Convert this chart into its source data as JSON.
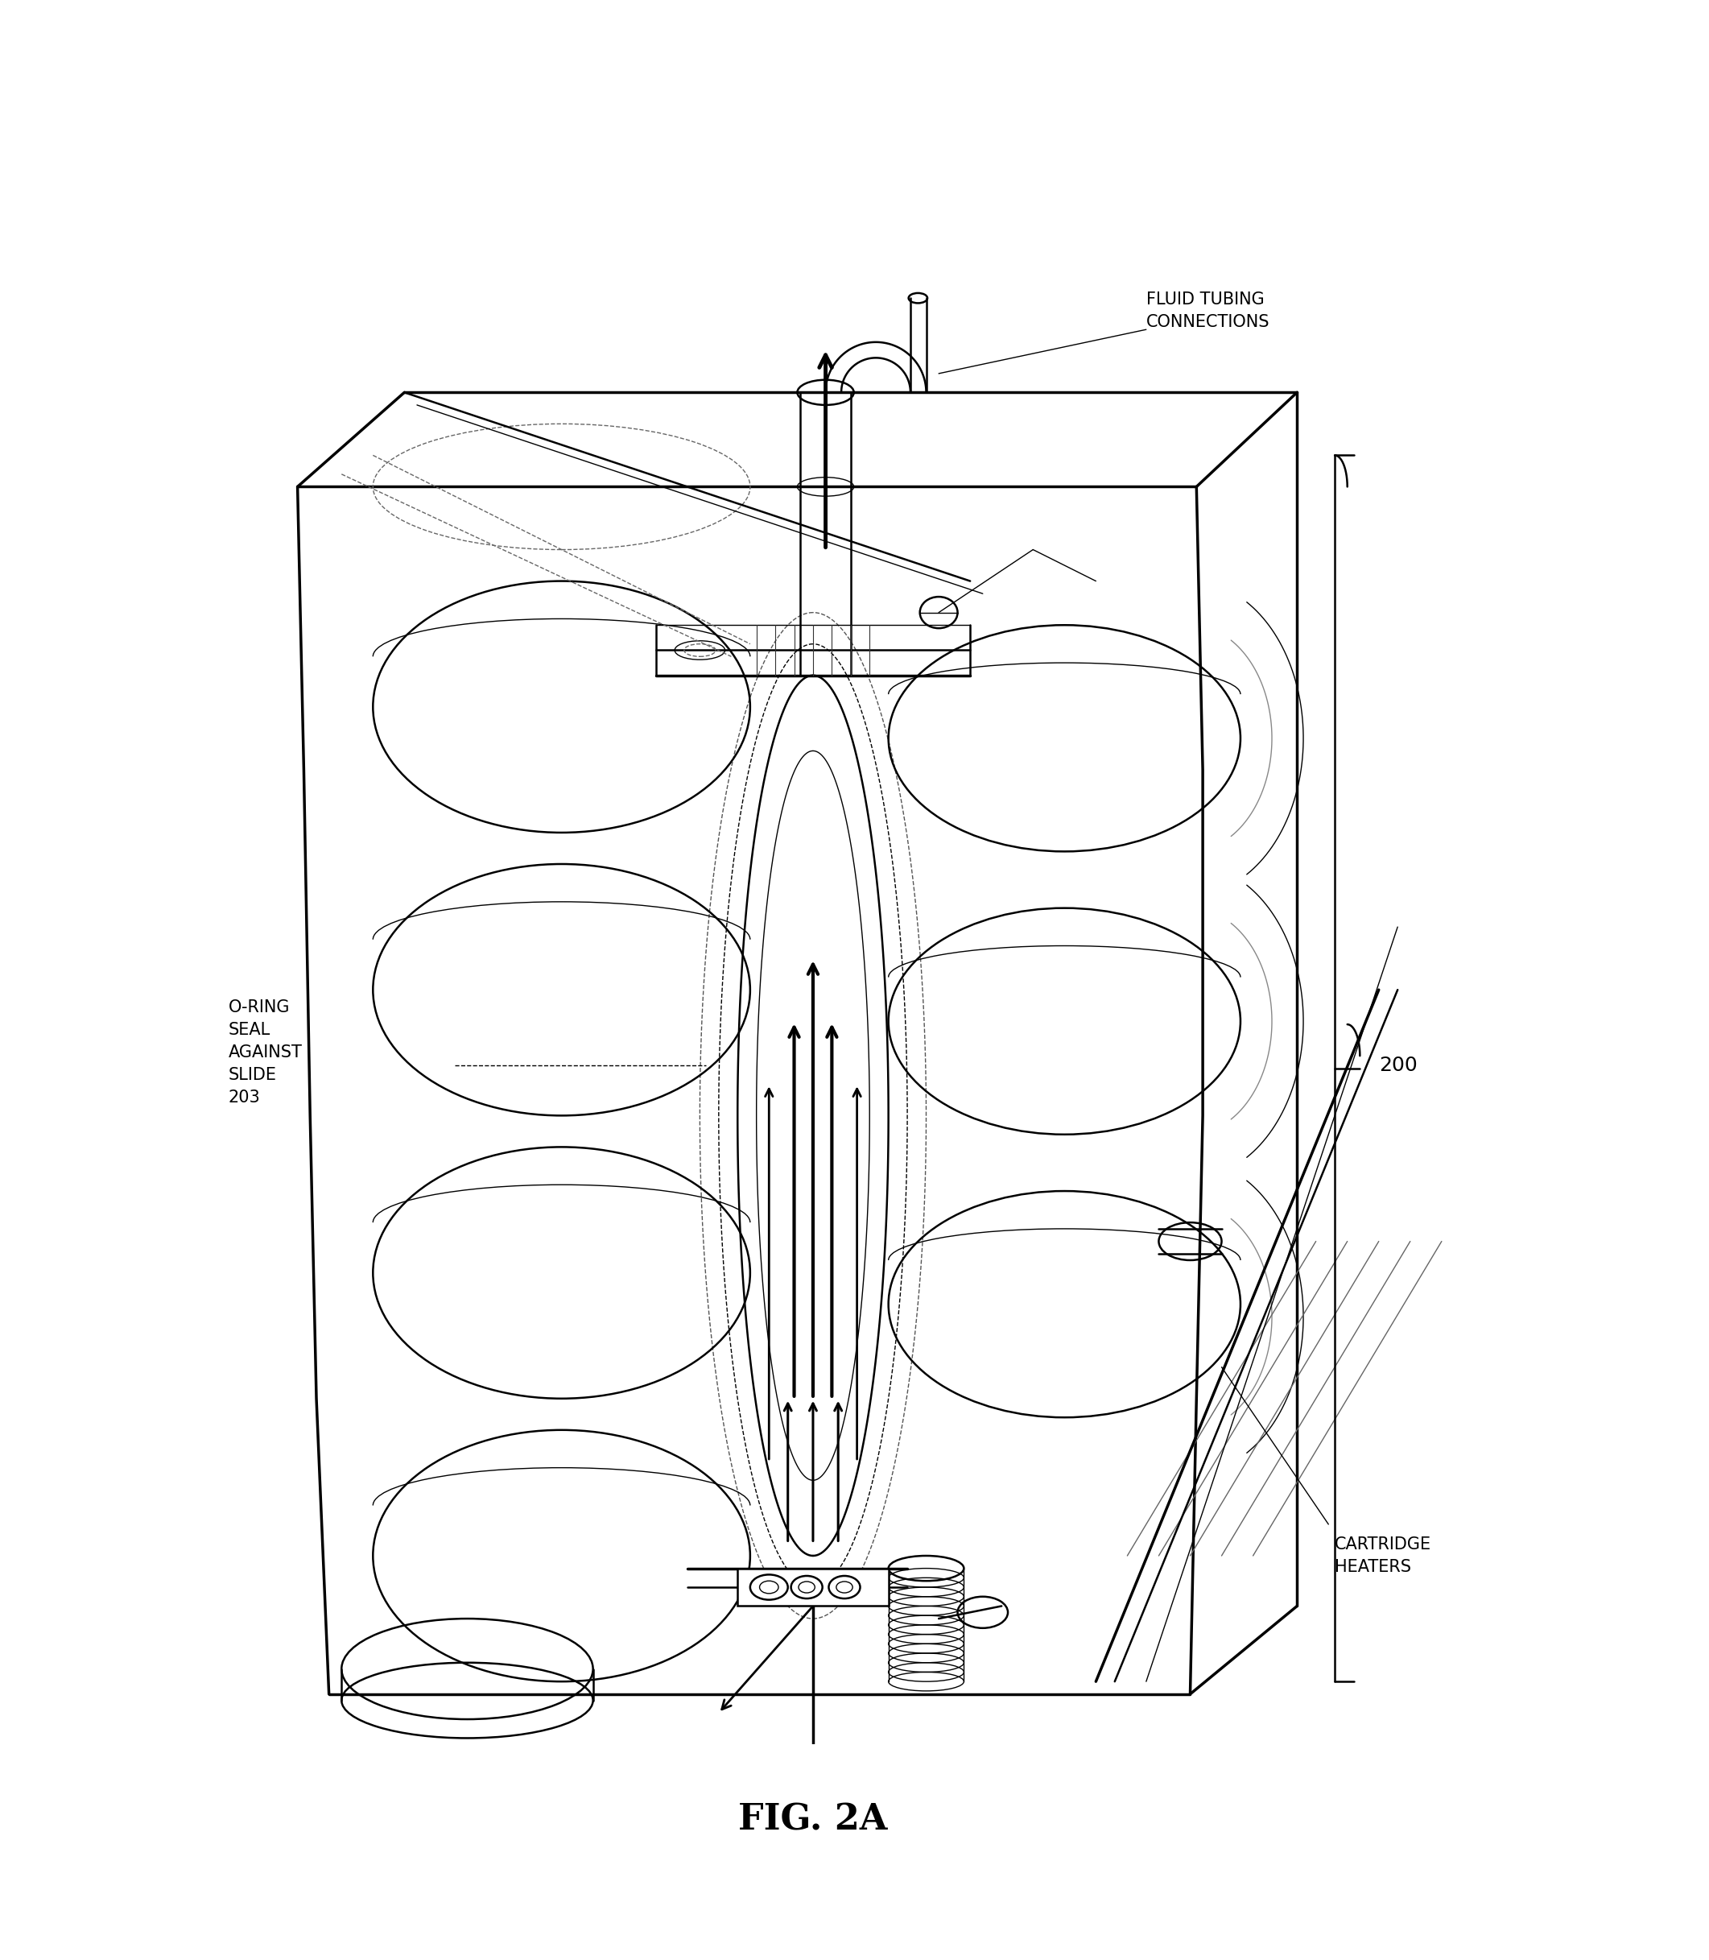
{
  "title": "FIG. 2A",
  "label_fluid_tubing": "FLUID TUBING\nCONNECTIONS",
  "label_oring": "O-RING\nSEAL\nAGAINST\nSLIDE\n203",
  "label_cartridge": "CARTRIDGE\nHEATERS",
  "label_200": "200",
  "bg_color": "#ffffff",
  "line_color": "#000000",
  "title_fontsize": 32,
  "label_fontsize": 15,
  "fig_width": 21.23,
  "fig_height": 24.34
}
